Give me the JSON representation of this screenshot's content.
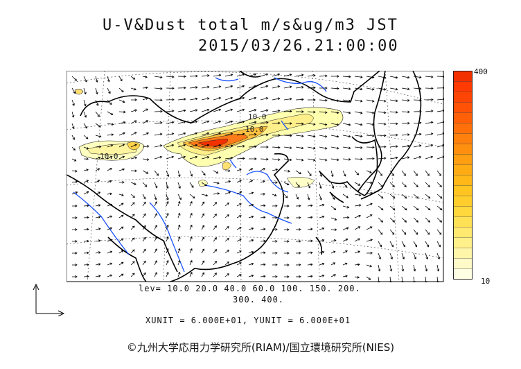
{
  "title": {
    "line1": "U-V&Dust total m/s&ug/m3 JST",
    "line2": "2015/03/26.21:00:00"
  },
  "colorbar": {
    "max_label": "400",
    "min_label": "10",
    "colors_low_to_high": [
      "#ffffe4",
      "#fffbc8",
      "#fff6aa",
      "#fff08a",
      "#ffe96e",
      "#ffe156",
      "#ffd83e",
      "#ffce2c",
      "#ffc420",
      "#ffb818",
      "#ffac14",
      "#ff9e10",
      "#ff8f0e",
      "#ff800c",
      "#ff700a",
      "#ff6008",
      "#ff5206",
      "#ff4504",
      "#ff3a02",
      "#f33000"
    ]
  },
  "contour_labels": [
    "10.0",
    "10.0",
    "10.0"
  ],
  "levels": {
    "line1": "lev= 10.0 20.0 40.0 60.0 100. 150. 200.",
    "line2": "300. 400."
  },
  "units": "XUNIT = 6.000E+01, YUNIT = 6.000E+01",
  "copyright": "©九州大学応用力学研究所(RIAM)/国立環境研究所(NIES)",
  "colors": {
    "coast": "#000000",
    "rivers": "#1a53ff",
    "dust_high": "#ff3b00",
    "dust_mid": "#ffb020",
    "dust_low": "#ffffa8"
  }
}
